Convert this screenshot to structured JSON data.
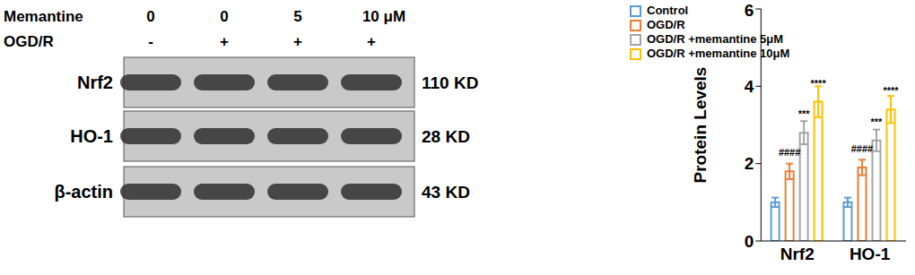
{
  "blot": {
    "treatment_rows": [
      {
        "label": "Memantine",
        "lanes": [
          "0",
          "0",
          "5",
          "10 μM"
        ]
      },
      {
        "label": "OGD/R",
        "lanes": [
          "-",
          "+",
          "+",
          "+"
        ]
      }
    ],
    "proteins": [
      {
        "label": "Nrf2",
        "size": "110 KD"
      },
      {
        "label": "HO-1",
        "size": "28 KD"
      },
      {
        "label": "β-actin",
        "size": "43 KD"
      }
    ]
  },
  "chart_data": {
    "type": "bar",
    "categories": [
      "Nrf2",
      "HO-1"
    ],
    "y_label": "Protein Levels",
    "ylim": [
      0,
      6
    ],
    "yticks": [
      0,
      2,
      4,
      6
    ],
    "legend": "upper left",
    "series": [
      {
        "name": "Control",
        "color": "#5b9bd5",
        "values": [
          1.0,
          1.0
        ],
        "errors": [
          0.12,
          0.12
        ]
      },
      {
        "name": "OGD/R",
        "color": "#ed7d31",
        "values": [
          1.8,
          1.9
        ],
        "errors": [
          0.2,
          0.2
        ],
        "annotations": [
          "####",
          "####"
        ]
      },
      {
        "name": "OGD/R +memantine 5μM",
        "color": "#a5a5a5",
        "values": [
          2.8,
          2.6
        ],
        "errors": [
          0.3,
          0.28
        ],
        "annotations": [
          "***",
          "***"
        ]
      },
      {
        "name": "OGD/R +memantine 10μM",
        "color": "#ffc000",
        "values": [
          3.6,
          3.4
        ],
        "errors": [
          0.4,
          0.35
        ],
        "annotations": [
          "****",
          "****"
        ]
      }
    ]
  }
}
